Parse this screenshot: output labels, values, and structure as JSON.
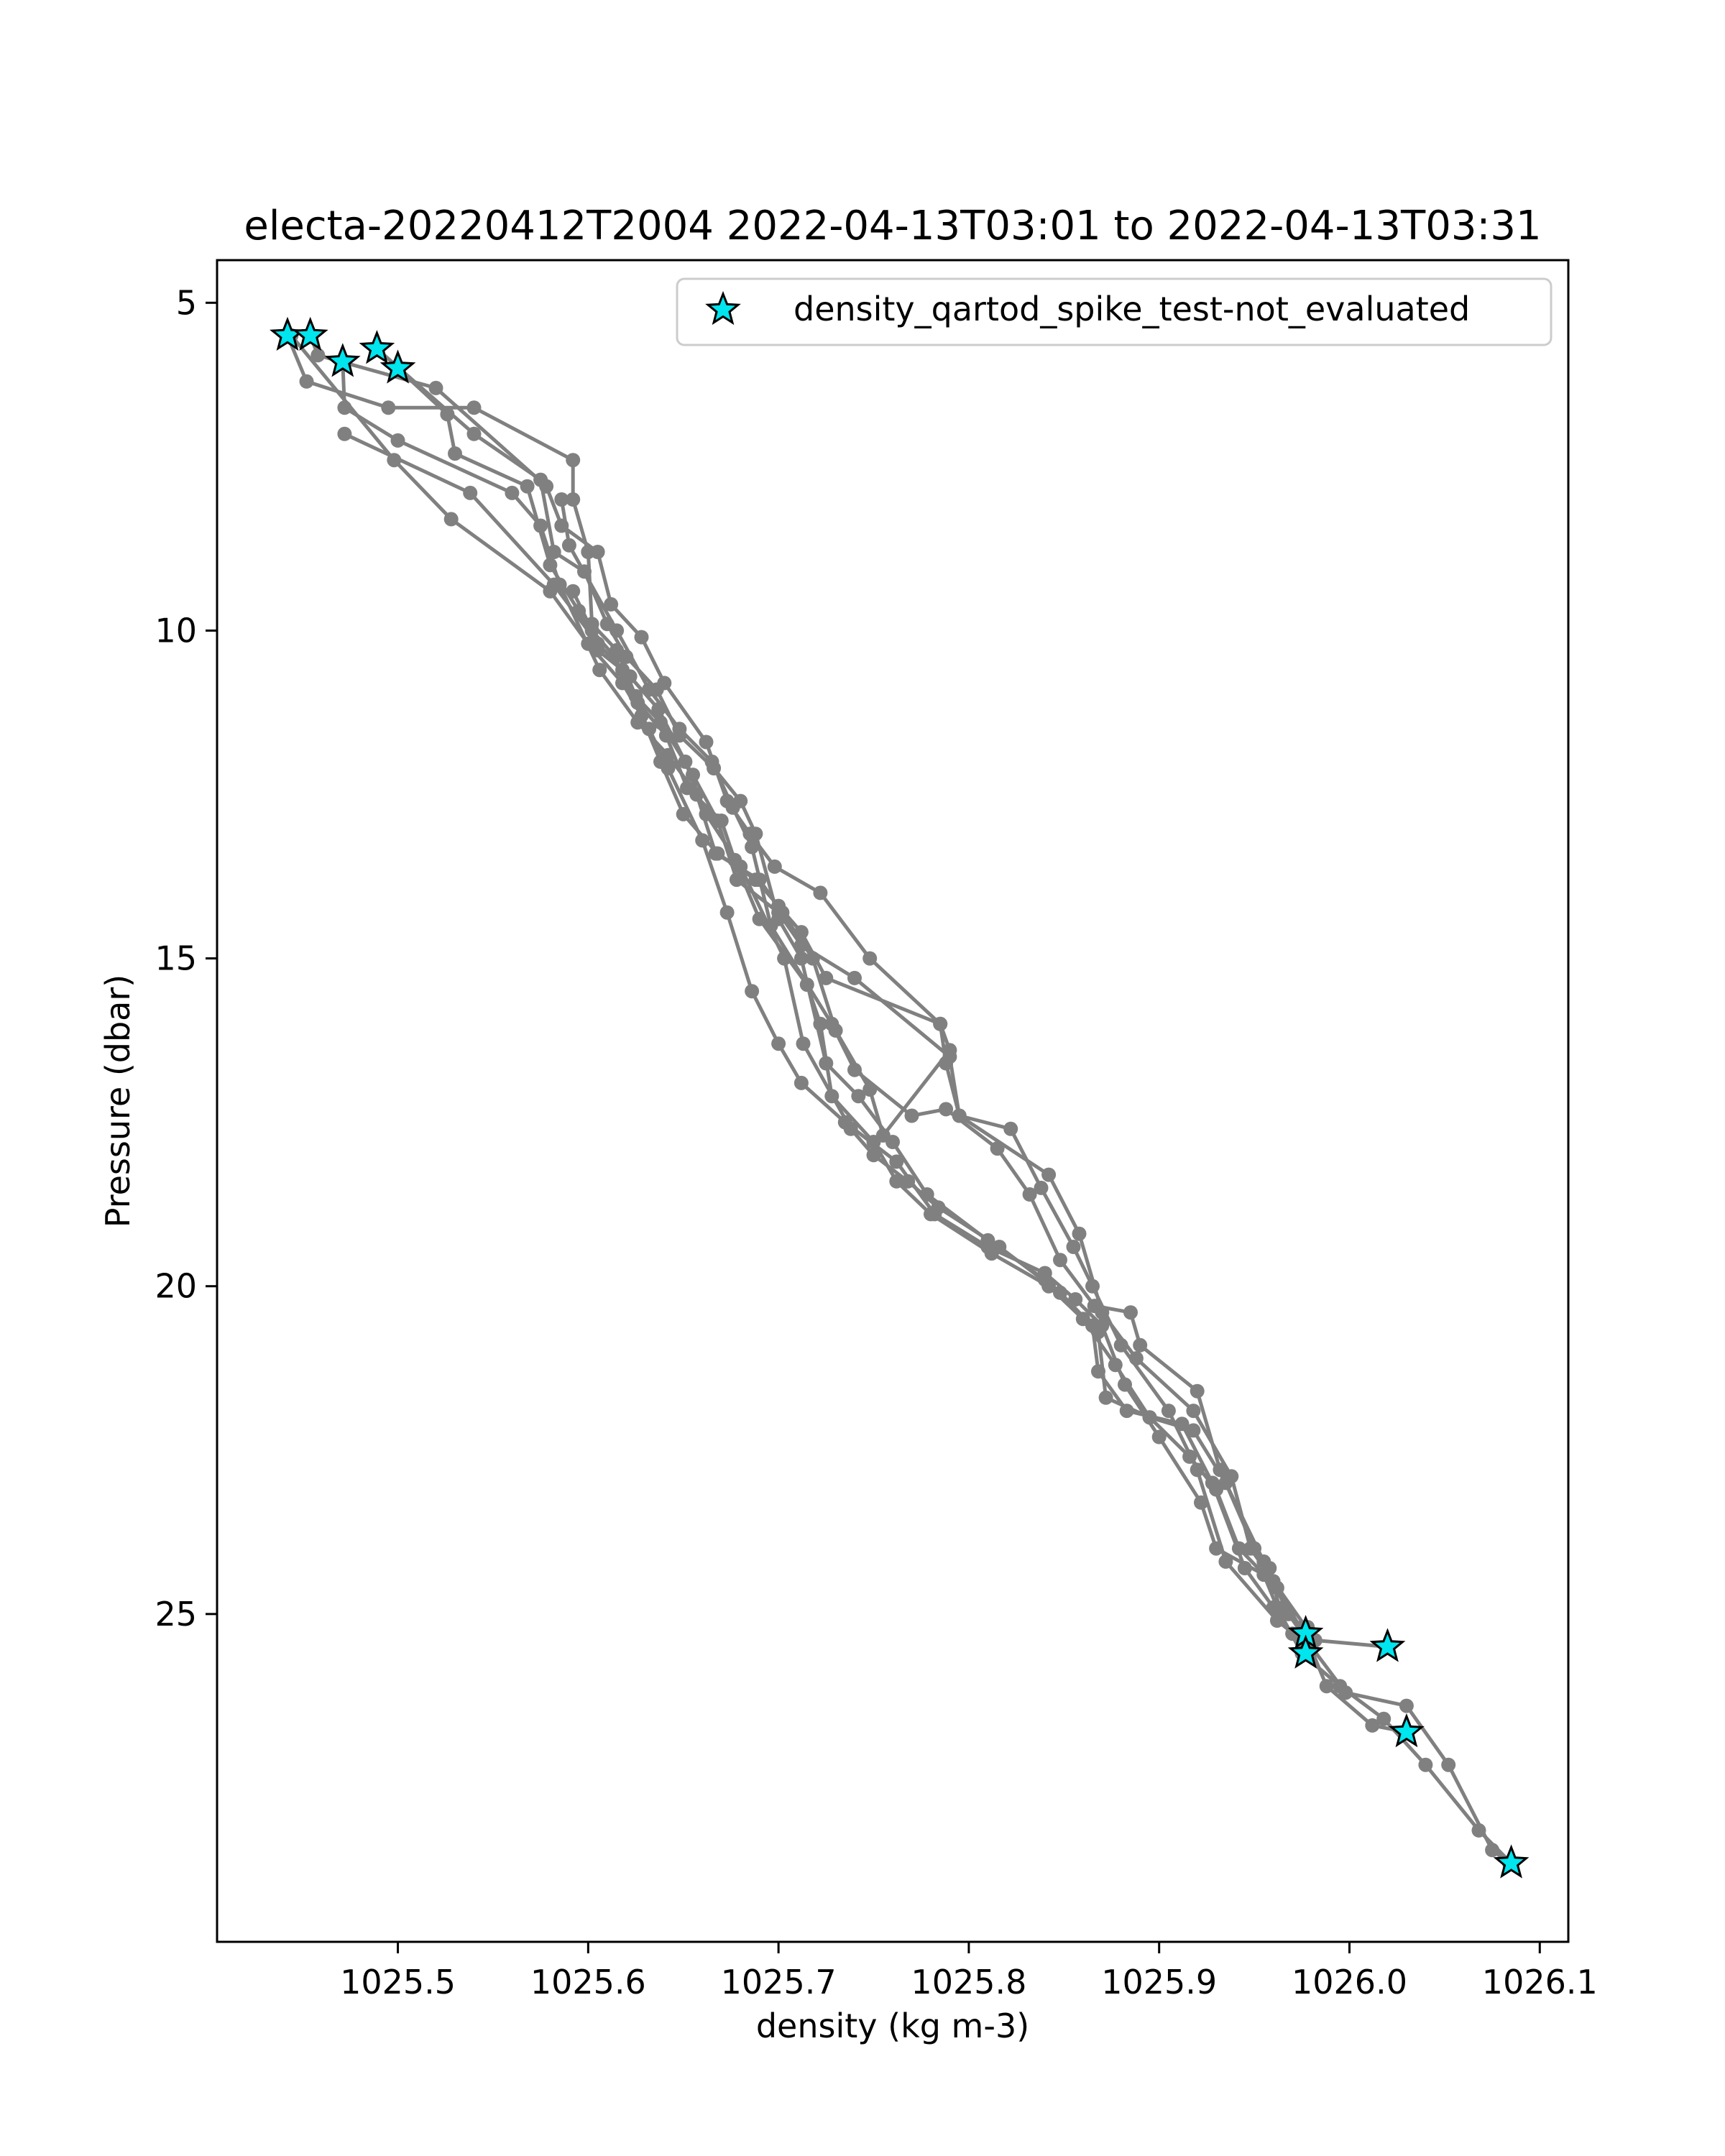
{
  "chart_data": {
    "type": "line",
    "title": "electa-20220412T2004 2022-04-13T03:01 to 2022-04-13T03:31",
    "xlabel": "density (kg m-3)",
    "ylabel": "Pressure (dbar)",
    "xlim": [
      1025.405,
      1026.115
    ],
    "ylim": [
      30.0,
      4.35
    ],
    "y_inverted": true,
    "grid": false,
    "legend_position": "upper right",
    "x_ticks": [
      1025.5,
      1025.6,
      1025.7,
      1025.8,
      1025.9,
      1026.0,
      1026.1
    ],
    "x_tick_labels": [
      "1025.5",
      "1025.6",
      "1025.7",
      "1025.8",
      "1025.9",
      "1026.0",
      "1026.1"
    ],
    "y_ticks": [
      5,
      10,
      15,
      20,
      25
    ],
    "y_tick_labels": [
      "5",
      "10",
      "15",
      "20",
      "25"
    ],
    "line_color": "#808080",
    "marker_color": "#808080",
    "flag_color": "#00e5ee",
    "flag_edge_color": "#000000",
    "series": [
      {
        "points": [
          [
            1025.442,
            5.5
          ],
          [
            1025.452,
            6.2
          ],
          [
            1025.495,
            6.6
          ],
          [
            1025.54,
            6.6
          ],
          [
            1025.592,
            7.4
          ],
          [
            1025.592,
            8.0
          ],
          [
            1025.6,
            8.8
          ],
          [
            1025.602,
            9.9
          ],
          [
            1025.615,
            10.3
          ],
          [
            1025.625,
            11.0
          ],
          [
            1025.638,
            11.4
          ],
          [
            1025.655,
            12.2
          ],
          [
            1025.668,
            12.9
          ],
          [
            1025.678,
            13.8
          ],
          [
            1025.7,
            14.3
          ],
          [
            1025.712,
            14.8
          ],
          [
            1025.74,
            15.3
          ],
          [
            1025.79,
            16.5
          ],
          [
            1025.795,
            17.4
          ],
          [
            1025.822,
            17.6
          ],
          [
            1025.838,
            18.5
          ],
          [
            1025.855,
            19.4
          ],
          [
            1025.865,
            20.0
          ],
          [
            1025.88,
            20.9
          ],
          [
            1025.905,
            21.9
          ],
          [
            1025.92,
            22.8
          ],
          [
            1025.935,
            24.2
          ],
          [
            1025.962,
            25.1
          ],
          [
            1025.975,
            25.4
          ]
        ]
      },
      {
        "points": [
          [
            1025.454,
            5.5
          ],
          [
            1025.458,
            5.8
          ],
          [
            1025.52,
            6.3
          ],
          [
            1025.578,
            7.8
          ],
          [
            1025.586,
            8.4
          ],
          [
            1025.605,
            8.8
          ],
          [
            1025.612,
            9.6
          ],
          [
            1025.628,
            10.1
          ],
          [
            1025.64,
            10.8
          ],
          [
            1025.662,
            11.7
          ],
          [
            1025.673,
            12.6
          ],
          [
            1025.685,
            13.1
          ],
          [
            1025.698,
            13.6
          ],
          [
            1025.722,
            14.0
          ],
          [
            1025.748,
            15.0
          ],
          [
            1025.785,
            16.0
          ],
          [
            1025.788,
            16.6
          ],
          [
            1025.795,
            17.4
          ],
          [
            1025.842,
            18.3
          ],
          [
            1025.858,
            19.2
          ],
          [
            1025.87,
            20.4
          ],
          [
            1025.888,
            21.1
          ],
          [
            1025.918,
            21.9
          ],
          [
            1025.938,
            22.9
          ],
          [
            1025.948,
            24.0
          ],
          [
            1025.96,
            24.5
          ],
          [
            1025.982,
            25.4
          ],
          [
            1026.02,
            25.5
          ]
        ]
      },
      {
        "points": [
          [
            1025.471,
            5.9
          ],
          [
            1025.472,
            6.6
          ],
          [
            1025.5,
            7.1
          ],
          [
            1025.56,
            7.9
          ],
          [
            1025.575,
            8.4
          ],
          [
            1025.585,
            9.3
          ],
          [
            1025.606,
            10.6
          ],
          [
            1025.626,
            11.4
          ],
          [
            1025.642,
            11.9
          ],
          [
            1025.657,
            12.5
          ],
          [
            1025.667,
            13.4
          ],
          [
            1025.69,
            13.8
          ],
          [
            1025.702,
            14.3
          ],
          [
            1025.718,
            15.0
          ],
          [
            1025.73,
            16.1
          ],
          [
            1025.748,
            17.0
          ],
          [
            1025.755,
            17.7
          ],
          [
            1025.79,
            16.4
          ],
          [
            1025.785,
            16.0
          ],
          [
            1025.725,
            15.3
          ],
          [
            1025.712,
            14.6
          ],
          [
            1025.7,
            14.2
          ],
          [
            1025.688,
            13.8
          ],
          [
            1025.668,
            13.4
          ],
          [
            1025.65,
            12.8
          ],
          [
            1025.638,
            12.0
          ],
          [
            1025.628,
            11.3
          ],
          [
            1025.614,
            10.4
          ],
          [
            1025.602,
            10.0
          ],
          [
            1025.592,
            9.4
          ]
        ]
      },
      {
        "points": [
          [
            1025.489,
            5.7
          ],
          [
            1025.54,
            7.0
          ],
          [
            1025.575,
            7.7
          ],
          [
            1025.582,
            8.8
          ],
          [
            1025.598,
            9.1
          ],
          [
            1025.61,
            9.9
          ],
          [
            1025.62,
            10.4
          ],
          [
            1025.636,
            10.9
          ],
          [
            1025.648,
            11.6
          ],
          [
            1025.666,
            12.1
          ],
          [
            1025.68,
            12.6
          ],
          [
            1025.688,
            13.1
          ],
          [
            1025.7,
            14.4
          ],
          [
            1025.712,
            15.0
          ],
          [
            1025.725,
            16.6
          ],
          [
            1025.742,
            17.1
          ],
          [
            1025.76,
            17.8
          ],
          [
            1025.778,
            18.6
          ],
          [
            1025.81,
            19.3
          ],
          [
            1025.84,
            19.9
          ],
          [
            1025.865,
            20.6
          ],
          [
            1025.868,
            21.3
          ],
          [
            1025.883,
            21.9
          ],
          [
            1025.912,
            22.1
          ],
          [
            1025.928,
            23.0
          ],
          [
            1025.945,
            24.3
          ],
          [
            1025.96,
            24.9
          ],
          [
            1025.97,
            25.3
          ],
          [
            1025.977,
            25.6
          ]
        ]
      },
      {
        "points": [
          [
            1025.5,
            6.0
          ],
          [
            1025.526,
            6.7
          ],
          [
            1025.53,
            7.3
          ],
          [
            1025.568,
            7.8
          ],
          [
            1025.58,
            9.0
          ],
          [
            1025.595,
            9.7
          ],
          [
            1025.605,
            10.3
          ],
          [
            1025.618,
            10.6
          ],
          [
            1025.626,
            11.1
          ],
          [
            1025.641,
            11.6
          ],
          [
            1025.652,
            12.4
          ],
          [
            1025.67,
            12.9
          ],
          [
            1025.677,
            13.5
          ],
          [
            1025.69,
            14.4
          ],
          [
            1025.715,
            15.4
          ],
          [
            1025.722,
            16.0
          ],
          [
            1025.728,
            17.1
          ],
          [
            1025.75,
            17.8
          ],
          [
            1025.762,
            18.4
          ],
          [
            1025.78,
            18.9
          ],
          [
            1025.812,
            19.5
          ],
          [
            1025.842,
            20.0
          ],
          [
            1025.86,
            20.5
          ],
          [
            1025.877,
            21.2
          ],
          [
            1025.895,
            22.0
          ],
          [
            1025.916,
            22.6
          ],
          [
            1025.93,
            23.1
          ],
          [
            1025.942,
            24.0
          ],
          [
            1025.962,
            24.6
          ],
          [
            1025.978,
            25.4
          ],
          [
            1025.988,
            26.1
          ],
          [
            1026.012,
            26.7
          ],
          [
            1026.03,
            26.8
          ]
        ]
      },
      {
        "points": [
          [
            1025.444,
            5.5
          ],
          [
            1025.498,
            7.4
          ],
          [
            1025.528,
            8.3
          ],
          [
            1025.58,
            9.4
          ],
          [
            1025.6,
            10.2
          ],
          [
            1025.618,
            10.8
          ],
          [
            1025.632,
            11.5
          ],
          [
            1025.642,
            12.1
          ],
          [
            1025.66,
            13.2
          ],
          [
            1025.673,
            14.3
          ],
          [
            1025.686,
            15.5
          ],
          [
            1025.7,
            16.3
          ],
          [
            1025.712,
            16.9
          ],
          [
            1025.735,
            17.5
          ],
          [
            1025.762,
            18.1
          ],
          [
            1025.782,
            18.9
          ],
          [
            1025.81,
            19.4
          ],
          [
            1025.84,
            19.8
          ],
          [
            1025.856,
            20.2
          ],
          [
            1025.87,
            20.6
          ],
          [
            1025.882,
            21.5
          ],
          [
            1025.9,
            22.3
          ],
          [
            1025.922,
            23.3
          ],
          [
            1025.93,
            24.0
          ],
          [
            1025.955,
            24.4
          ],
          [
            1025.962,
            24.9
          ],
          [
            1025.975,
            25.6
          ],
          [
            1025.995,
            26.1
          ],
          [
            1026.018,
            26.6
          ],
          [
            1026.04,
            27.3
          ],
          [
            1026.068,
            28.3
          ],
          [
            1026.085,
            28.8
          ]
        ]
      },
      {
        "points": [
          [
            1025.472,
            7.0
          ],
          [
            1025.538,
            7.9
          ],
          [
            1025.582,
            9.3
          ],
          [
            1025.605,
            10.2
          ],
          [
            1025.622,
            10.7
          ],
          [
            1025.637,
            11.2
          ],
          [
            1025.651,
            12.0
          ],
          [
            1025.662,
            12.8
          ],
          [
            1025.68,
            13.6
          ],
          [
            1025.703,
            15.0
          ],
          [
            1025.713,
            16.3
          ],
          [
            1025.738,
            17.6
          ],
          [
            1025.75,
            18.0
          ],
          [
            1025.768,
            18.4
          ],
          [
            1025.784,
            18.8
          ],
          [
            1025.816,
            19.4
          ],
          [
            1025.848,
            20.1
          ],
          [
            1025.868,
            20.7
          ],
          [
            1025.872,
            21.7
          ],
          [
            1025.895,
            22.0
          ],
          [
            1025.918,
            22.2
          ],
          [
            1025.935,
            23.0
          ],
          [
            1025.955,
            24.2
          ],
          [
            1025.968,
            25.0
          ],
          [
            1025.98,
            25.5
          ],
          [
            1025.998,
            26.2
          ],
          [
            1026.03,
            26.4
          ],
          [
            1026.052,
            27.3
          ],
          [
            1026.075,
            28.6
          ],
          [
            1026.084,
            28.8
          ]
        ]
      },
      {
        "points": [
          [
            1025.586,
            8.0
          ],
          [
            1025.59,
            8.7
          ],
          [
            1025.615,
            10.0
          ],
          [
            1025.632,
            10.9
          ],
          [
            1025.648,
            11.5
          ],
          [
            1025.665,
            12.0
          ],
          [
            1025.676,
            12.7
          ],
          [
            1025.686,
            13.3
          ],
          [
            1025.696,
            14.5
          ],
          [
            1025.728,
            16.0
          ],
          [
            1025.74,
            16.7
          ],
          [
            1025.77,
            17.4
          ],
          [
            1025.788,
            17.3
          ],
          [
            1025.815,
            17.9
          ],
          [
            1025.832,
            18.6
          ],
          [
            1025.848,
            19.6
          ],
          [
            1025.866,
            20.3
          ],
          [
            1025.885,
            20.4
          ],
          [
            1025.89,
            20.9
          ],
          [
            1025.92,
            21.6
          ],
          [
            1025.932,
            22.8
          ],
          [
            1025.95,
            24.0
          ],
          [
            1025.958,
            24.3
          ],
          [
            1025.964,
            25.0
          ],
          [
            1025.978,
            25.2
          ]
        ]
      }
    ],
    "flagged_points": {
      "marker": "star",
      "points": [
        [
          1025.442,
          5.5
        ],
        [
          1025.454,
          5.5
        ],
        [
          1025.471,
          5.9
        ],
        [
          1025.489,
          5.7
        ],
        [
          1025.5,
          6.0
        ],
        [
          1025.977,
          25.3
        ],
        [
          1025.977,
          25.6
        ],
        [
          1026.02,
          25.5
        ],
        [
          1026.03,
          26.8
        ],
        [
          1026.085,
          28.8
        ]
      ]
    },
    "legend": [
      {
        "label": "density_qartod_spike_test-not_evaluated",
        "marker": "star"
      }
    ]
  }
}
